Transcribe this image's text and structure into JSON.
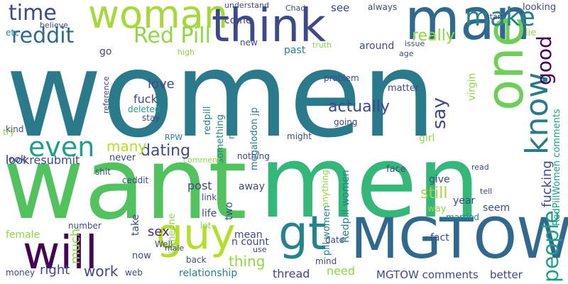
{
  "colors": {
    "background": "#ffffff",
    "palette": [
      "#440154",
      "#482878",
      "#3e4989",
      "#31688e",
      "#26828e",
      "#1f9e89",
      "#35b779",
      "#6ece58",
      "#b5de2b",
      "#fde725"
    ]
  },
  "words": [
    {
      "text": "women",
      "color": "#2a7a8c"
    },
    {
      "text": "want",
      "color": "#52c25f"
    },
    {
      "text": "men",
      "color": "#35b779"
    },
    {
      "text": "woman",
      "color": "#a6d83a"
    },
    {
      "text": "think",
      "color": "#3e4989"
    },
    {
      "text": "man",
      "color": "#31688e"
    },
    {
      "text": "one",
      "color": "#6ece58"
    },
    {
      "text": "make",
      "color": "#26828e"
    },
    {
      "text": "MGTOW",
      "color": "#31688e"
    },
    {
      "text": "gt",
      "color": "#26828e"
    },
    {
      "text": "guy",
      "color": "#b5de2b"
    },
    {
      "text": "will",
      "color": "#440154"
    },
    {
      "text": "know",
      "color": "#2a7a8c"
    },
    {
      "text": "even",
      "color": "#1f9e89"
    },
    {
      "text": "time",
      "color": "#3e4989"
    },
    {
      "text": "reddit",
      "color": "#31688e"
    },
    {
      "text": "Red Pill",
      "color": "#8fd744"
    },
    {
      "text": "people",
      "color": "#1f9e89"
    },
    {
      "text": "good",
      "color": "#440154"
    },
    {
      "text": "really",
      "color": "#8fd744"
    },
    {
      "text": "actually",
      "color": "#3e4989"
    },
    {
      "text": "dating",
      "color": "#3e4989"
    },
    {
      "text": "still",
      "color": "#a6d83a"
    },
    {
      "text": "say",
      "color": "#3e4989"
    },
    {
      "text": "sex",
      "color": "#482878"
    },
    {
      "text": "work",
      "color": "#3e4989"
    },
    {
      "text": "right",
      "color": "#3e4989"
    },
    {
      "text": "thing",
      "color": "#8fd744"
    },
    {
      "text": "much",
      "color": "#8fd744"
    },
    {
      "text": "fucking",
      "color": "#3e4989"
    },
    {
      "text": "lookresubmit",
      "color": "#3e4989"
    },
    {
      "text": "love",
      "color": "#3e4989"
    },
    {
      "text": "fuck",
      "color": "#3e4989"
    },
    {
      "text": "many",
      "color": "#b5de2b"
    },
    {
      "text": "relationship",
      "color": "#26828e"
    },
    {
      "text": "post",
      "color": "#3e4989"
    },
    {
      "text": "need",
      "color": "#8fd744"
    },
    {
      "text": "thread",
      "color": "#3e4989"
    },
    {
      "text": "MGTOW comments",
      "color": "#3e4989"
    },
    {
      "text": "better",
      "color": "#3e4989"
    },
    {
      "text": "girl",
      "color": "#8fd744"
    },
    {
      "text": "see",
      "color": "#3e4989"
    },
    {
      "text": "come",
      "color": "#3e4989"
    },
    {
      "text": "past",
      "color": "#26828e"
    },
    {
      "text": "around",
      "color": "#3e4989"
    },
    {
      "text": "problem",
      "color": "#3e4989"
    },
    {
      "text": "matter",
      "color": "#3e4989"
    },
    {
      "text": "virgin",
      "color": "#8fd744"
    },
    {
      "text": "deleted",
      "color": "#1f9e89"
    },
    {
      "text": "stay",
      "color": "#3e4989"
    },
    {
      "text": "take",
      "color": "#3e4989"
    },
    {
      "text": "life",
      "color": "#3e4989"
    },
    {
      "text": "mean",
      "color": "#3e4989"
    },
    {
      "text": "n count",
      "color": "#3e4989"
    },
    {
      "text": "Well",
      "color": "#3e4989"
    },
    {
      "text": "now",
      "color": "#3e4989"
    },
    {
      "text": "web",
      "color": "#3e4989"
    },
    {
      "text": "date",
      "color": "#3e4989"
    },
    {
      "text": "fact",
      "color": "#3e4989"
    },
    {
      "text": "face",
      "color": "#3e4989"
    },
    {
      "text": "give",
      "color": "#3e4989"
    },
    {
      "text": "year",
      "color": "#3e4989"
    },
    {
      "text": "seem",
      "color": "#3e4989"
    },
    {
      "text": "way",
      "color": "#8fd744"
    },
    {
      "text": "married",
      "color": "#26828e"
    },
    {
      "text": "Redpill women",
      "color": "#26828e"
    },
    {
      "text": "RedPillWomen comments",
      "color": "#1f9e89"
    },
    {
      "text": "pill women",
      "color": "#26828e"
    },
    {
      "text": "megalodon jp",
      "color": "#26828e"
    },
    {
      "text": "something",
      "color": "#26828e"
    },
    {
      "text": "redpill",
      "color": "#26828e"
    },
    {
      "text": "someone",
      "color": "#8fd744"
    },
    {
      "text": "two",
      "color": "#3e4989"
    },
    {
      "text": "shit",
      "color": "#3e4989"
    },
    {
      "text": "never",
      "color": "#3e4989"
    },
    {
      "text": "female",
      "color": "#8fd744"
    },
    {
      "text": "away",
      "color": "#3e4989"
    },
    {
      "text": "go",
      "color": "#3e4989"
    },
    {
      "text": "look",
      "color": "#3e4989"
    },
    {
      "text": "lie",
      "color": "#8fd744"
    },
    {
      "text": "always",
      "color": "#3e4989"
    },
    {
      "text": "understand",
      "color": "#3e4989"
    },
    {
      "text": "new",
      "color": "#3e4989"
    },
    {
      "text": "lot",
      "color": "#8fd744"
    },
    {
      "text": "link",
      "color": "#3e4989"
    },
    {
      "text": "nothing",
      "color": "#3e4989"
    },
    {
      "text": "anything",
      "color": "#8fd744"
    },
    {
      "text": "reason",
      "color": "#26828e"
    },
    {
      "text": "Chad",
      "color": "#3e4989"
    },
    {
      "text": "might",
      "color": "#3e4989"
    },
    {
      "text": "going",
      "color": "#3e4989"
    },
    {
      "text": "looking",
      "color": "#3e4989"
    },
    {
      "text": "high",
      "color": "#8fd744"
    },
    {
      "text": "age",
      "color": "#3e4989"
    },
    {
      "text": "issue",
      "color": "#3e4989"
    },
    {
      "text": "truth",
      "color": "#8fd744"
    },
    {
      "text": "believe",
      "color": "#3e4989"
    },
    {
      "text": "etc",
      "color": "#26828e"
    },
    {
      "text": "kind",
      "color": "#3e4989"
    },
    {
      "text": "number",
      "color": "#3e4989"
    },
    {
      "text": "money",
      "color": "#3e4989"
    },
    {
      "text": "back",
      "color": "#3e4989"
    },
    {
      "text": "mind",
      "color": "#3e4989"
    },
    {
      "text": "ceddit",
      "color": "#3e4989"
    },
    {
      "text": "reference",
      "color": "#3e4989"
    },
    {
      "text": "comment",
      "color": "#8fd744"
    },
    {
      "text": "RPW",
      "color": "#26828e"
    },
    {
      "text": "try",
      "color": "#8fd744"
    },
    {
      "text": "use",
      "color": "#3e4989"
    },
    {
      "text": "male",
      "color": "#3e4989"
    },
    {
      "text": "tell",
      "color": "#3e4989"
    },
    {
      "text": "read",
      "color": "#3e4989"
    },
    {
      "text": "start",
      "color": "#3e4989"
    }
  ]
}
